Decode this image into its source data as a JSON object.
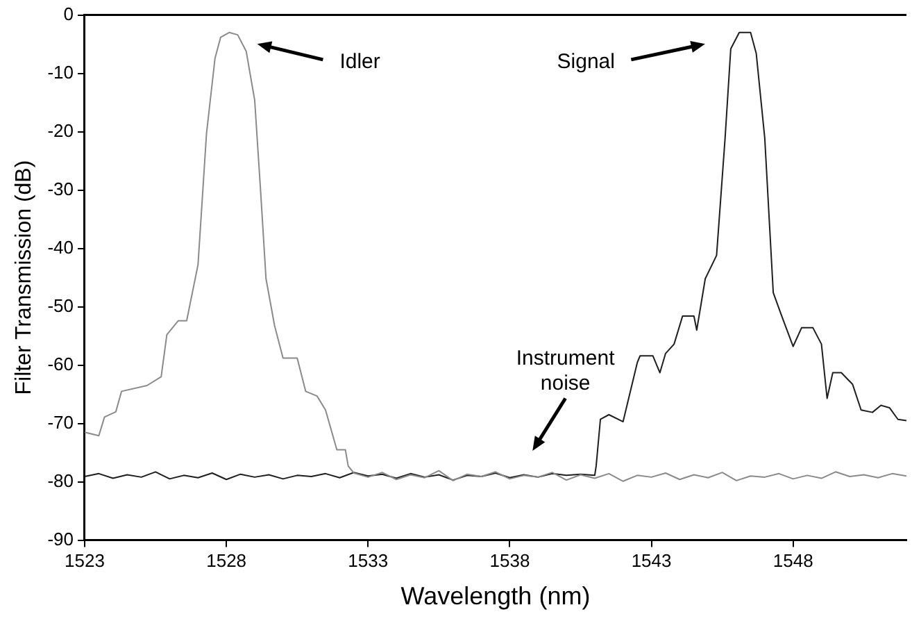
{
  "chart_data": {
    "type": "line",
    "xlabel": "Wavelength (nm)",
    "ylabel": "Filter Transmission (dB)",
    "xlim": [
      1523,
      1552
    ],
    "xticks": [
      1523,
      1528,
      1533,
      1538,
      1543,
      1548
    ],
    "ylim": [
      -90,
      0
    ],
    "yticks": [
      -90,
      -80,
      -70,
      -60,
      -50,
      -40,
      -30,
      -20,
      -10,
      0
    ],
    "grid": false,
    "legend": false,
    "marker": "none",
    "line_style": "solid",
    "series": [
      {
        "color": "#8a8a8a",
        "x": [
          1523,
          1523.5,
          1523.7,
          1524.1,
          1524.3,
          1525.2,
          1525.7,
          1525.9,
          1526.3,
          1526.6,
          1527,
          1527.3,
          1527.6,
          1527.8,
          1528.1,
          1528.4,
          1528.7,
          1529,
          1529.2,
          1529.4,
          1529.7,
          1530,
          1530.5,
          1530.8,
          1531.2,
          1531.5,
          1531.9,
          1532.2,
          1532.3,
          1532.5,
          1533,
          1533.5,
          1534,
          1534.5,
          1535,
          1535.5,
          1536,
          1536.5,
          1537,
          1537.5,
          1538,
          1538.5,
          1539,
          1539.5,
          1540,
          1540.5,
          1541,
          1541.5,
          1542,
          1542.5,
          1543,
          1543.5,
          1544,
          1544.5,
          1545,
          1545.5,
          1546,
          1546.5,
          1547,
          1547.5,
          1548,
          1548.5,
          1549,
          1549.5,
          1550,
          1550.5,
          1551,
          1551.5,
          1552
        ],
        "values": [
          -71.5,
          -72.1,
          -68.9,
          -68,
          -64.5,
          -63.5,
          -62,
          -54.8,
          -52.4,
          -52.4,
          -42.8,
          -20.3,
          -7.4,
          -3.8,
          -3,
          -3.4,
          -6.2,
          -14.6,
          -29.5,
          -45.2,
          -53.2,
          -58.8,
          -58.8,
          -64.5,
          -65.3,
          -67.7,
          -74.5,
          -74.5,
          -77.3,
          -78.5,
          -79.2,
          -78.4,
          -79.6,
          -78.8,
          -79.3,
          -78.1,
          -79.8,
          -78.7,
          -79.1,
          -78.3,
          -79.5,
          -78.9,
          -79.2,
          -78.4,
          -79.7,
          -78.8,
          -79.4,
          -78.6,
          -79.9,
          -78.9,
          -79.2,
          -78.5,
          -79.6,
          -78.8,
          -79.3,
          -78.4,
          -79.8,
          -79,
          -79.2,
          -78.6,
          -79.5,
          -78.9,
          -79.4,
          -78.3,
          -79.1,
          -78.8,
          -79.3,
          -78.6,
          -79
        ]
      },
      {
        "color": "#1e1e1e",
        "x": [
          1523,
          1523.5,
          1524,
          1524.5,
          1525,
          1525.5,
          1526,
          1526.5,
          1527,
          1527.5,
          1528,
          1528.5,
          1529,
          1529.5,
          1530,
          1530.5,
          1531,
          1531.5,
          1532,
          1532.5,
          1533,
          1533.5,
          1534,
          1534.5,
          1535,
          1535.5,
          1536,
          1536.5,
          1537,
          1537.5,
          1538,
          1538.5,
          1539,
          1539.5,
          1540,
          1540.5,
          1541,
          1541.05,
          1541.2,
          1541.5,
          1542,
          1542.5,
          1542.6,
          1543.05,
          1543.3,
          1543.5,
          1543.8,
          1544.1,
          1544.5,
          1544.6,
          1544.9,
          1545.3,
          1545.6,
          1545.8,
          1546.1,
          1546.5,
          1546.7,
          1547,
          1547.3,
          1547.6,
          1548,
          1548.3,
          1548.7,
          1549,
          1549.2,
          1549.4,
          1549.7,
          1550.1,
          1550.4,
          1550.8,
          1551.1,
          1551.4,
          1551.7,
          1552
        ],
        "values": [
          -79.1,
          -78.6,
          -79.4,
          -78.8,
          -79.2,
          -78.3,
          -79.5,
          -78.9,
          -79.3,
          -78.5,
          -79.6,
          -78.7,
          -79.2,
          -78.8,
          -79.5,
          -78.9,
          -79.1,
          -78.6,
          -79.3,
          -78.4,
          -79,
          -78.7,
          -79.4,
          -78.6,
          -79.2,
          -78.8,
          -79.7,
          -78.9,
          -79.1,
          -78.5,
          -79.3,
          -78.8,
          -79.2,
          -78.6,
          -78.9,
          -78.7,
          -78.9,
          -77.3,
          -69.3,
          -68.5,
          -69.7,
          -59.6,
          -58.4,
          -58.4,
          -61.3,
          -58,
          -56.4,
          -51.6,
          -51.6,
          -54,
          -45.2,
          -41.2,
          -21.1,
          -5.8,
          -3,
          -3,
          -6.6,
          -21.1,
          -47.6,
          -51.6,
          -56.8,
          -53.6,
          -53.6,
          -56.4,
          -65.7,
          -61.3,
          -61.3,
          -63.3,
          -67.7,
          -68.1,
          -66.9,
          -67.3,
          -69.3,
          -69.5
        ]
      }
    ],
    "annotations": [
      "Idler",
      "Signal",
      "Instrument noise"
    ]
  }
}
